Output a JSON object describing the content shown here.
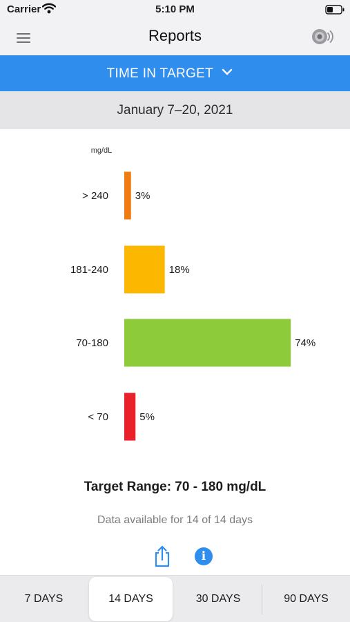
{
  "status_bar": {
    "carrier": "Carrier",
    "time": "5:10 PM"
  },
  "nav": {
    "title": "Reports",
    "menu_icon": "hamburger-menu-icon",
    "sensor_icon": "sensor-scan-icon"
  },
  "report_type": {
    "label": "TIME IN TARGET",
    "icon": "chevron-down-icon"
  },
  "date_range": "January 7–20, 2021",
  "chart_data": {
    "type": "bar",
    "orientation": "horizontal",
    "unit_label": "mg/dL",
    "categories": [
      "> 240",
      "181-240",
      "70-180",
      "< 70"
    ],
    "values": [
      3,
      18,
      74,
      5
    ],
    "value_labels": [
      "3%",
      "18%",
      "74%",
      "5%"
    ],
    "colors": [
      "#f07b13",
      "#fcb800",
      "#8dcb3a",
      "#e8212b"
    ],
    "xlim": [
      0,
      100
    ]
  },
  "target_range": "Target Range: 70 - 180 mg/dL",
  "data_available": "Data available for 14 of 14 days",
  "actions": {
    "share_icon": "share-icon",
    "info_icon": "info-icon",
    "info_glyph": "i"
  },
  "period_selector": {
    "options": [
      "7 DAYS",
      "14 DAYS",
      "30 DAYS",
      "90 DAYS"
    ],
    "selected": "14 DAYS"
  },
  "colors": {
    "accent": "#2f8ded",
    "header_bg": "#f2f2f4",
    "date_bg": "#e5e5e7"
  }
}
